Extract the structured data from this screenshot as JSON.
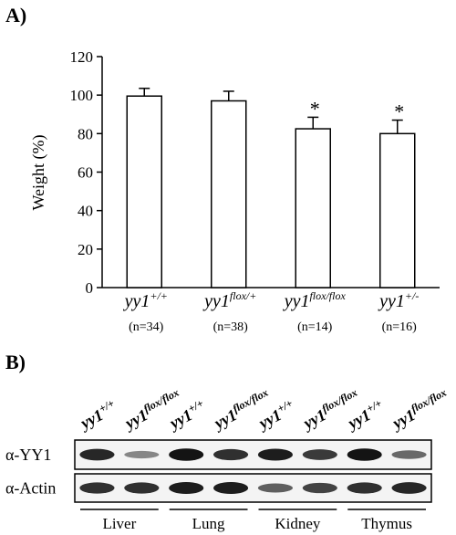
{
  "chart_data": [
    {
      "type": "bar",
      "panel_label": "A)",
      "ylabel": "Weight (%)",
      "ylim": [
        0,
        120
      ],
      "yticks": [
        0,
        20,
        40,
        60,
        80,
        100,
        120
      ],
      "categories": [
        {
          "base": "yy1",
          "sup": "+/+",
          "n": "(n=34)"
        },
        {
          "base": "yy1",
          "sup": "flox/+",
          "n": "(n=38)"
        },
        {
          "base": "yy1",
          "sup": "flox/flox",
          "n": "(n=14)"
        },
        {
          "base": "yy1",
          "sup": "+/-",
          "n": "(n=16)"
        }
      ],
      "values": [
        99.5,
        97,
        82.5,
        80
      ],
      "errors": [
        4,
        5,
        6,
        7
      ],
      "significance": [
        "",
        "",
        "*",
        "*"
      ]
    }
  ],
  "blot": {
    "panel_label": "B)",
    "lanes": [
      {
        "base": "yy1",
        "sup": "+/+"
      },
      {
        "base": "yy1",
        "sup": "flox/flox"
      },
      {
        "base": "yy1",
        "sup": "+/+"
      },
      {
        "base": "yy1",
        "sup": "flox/flox"
      },
      {
        "base": "yy1",
        "sup": "+/+"
      },
      {
        "base": "yy1",
        "sup": "flox/flox"
      },
      {
        "base": "yy1",
        "sup": "+/+"
      },
      {
        "base": "yy1",
        "sup": "flox/flox"
      }
    ],
    "rows": [
      {
        "label": "α-YY1",
        "intensity": [
          0.85,
          0.35,
          0.95,
          0.8,
          0.9,
          0.75,
          0.95,
          0.5
        ]
      },
      {
        "label": "α-Actin",
        "intensity": [
          0.8,
          0.8,
          0.9,
          0.9,
          0.55,
          0.7,
          0.8,
          0.85
        ]
      }
    ],
    "tissues": [
      "Liver",
      "Lung",
      "Kidney",
      "Thymus"
    ]
  }
}
